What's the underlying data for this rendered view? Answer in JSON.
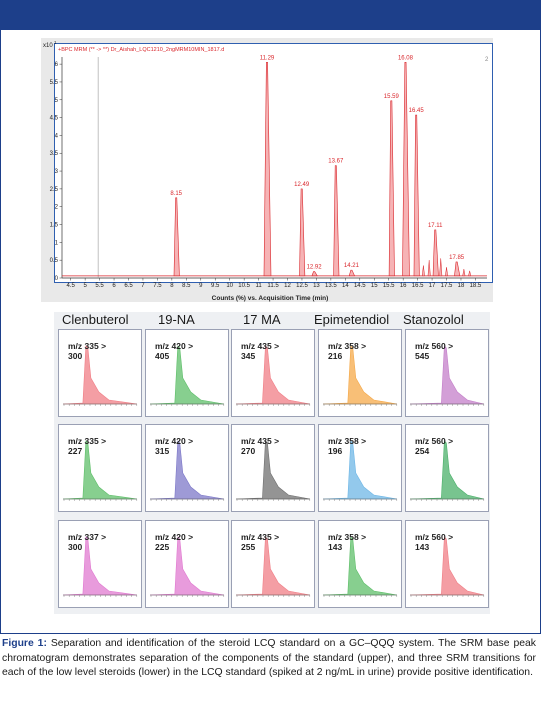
{
  "chart_data": [
    {
      "type": "line",
      "title": "+BPC MRM (** -> **) Dr_Aishah_LQC1210_2ngMRM10MIN_1817.d",
      "xlabel": "Counts (%) vs. Acquisition Time (min)",
      "y_exponent_label": "x10",
      "y_exponent_power": "1",
      "xlim": [
        4.2,
        18.9
      ],
      "ylim": [
        0,
        6.2
      ],
      "x_ticks": [
        "4.5",
        "5",
        "5.5",
        "6",
        "6.5",
        "7",
        "7.5",
        "8",
        "8.5",
        "9",
        "9.5",
        "10",
        "10.5",
        "11",
        "11.5",
        "12",
        "12.5",
        "13",
        "13.5",
        "14",
        "14.5",
        "15",
        "15.5",
        "16",
        "16.5",
        "17",
        "17.5",
        "18",
        "18.5"
      ],
      "y_ticks": [
        "0",
        "0.5",
        "1",
        "1.5",
        "2",
        "2.5",
        "3",
        "3.5",
        "4",
        "4.5",
        "5",
        "5.5",
        "6"
      ],
      "corner_marker": "2",
      "peaks": [
        {
          "x": 8.15,
          "y": 2.25,
          "label": "8.15"
        },
        {
          "x": 11.29,
          "y": 6.05,
          "label": "11.29"
        },
        {
          "x": 12.49,
          "y": 2.5,
          "label": "12.49"
        },
        {
          "x": 12.92,
          "y": 0.18,
          "label": "12.92"
        },
        {
          "x": 13.67,
          "y": 3.15,
          "label": "13.67"
        },
        {
          "x": 14.21,
          "y": 0.22,
          "label": "14.21"
        },
        {
          "x": 15.59,
          "y": 4.97,
          "label": "15.59"
        },
        {
          "x": 16.08,
          "y": 6.05,
          "label": "16.08"
        },
        {
          "x": 16.45,
          "y": 4.57,
          "label": "16.45"
        },
        {
          "x": 17.11,
          "y": 1.35,
          "label": "17.11"
        },
        {
          "x": 17.85,
          "y": 0.45,
          "label": "17.85"
        }
      ],
      "line_color": "#d9262b"
    },
    {
      "type": "grid_of_line_charts",
      "columns": [
        "Clenbuterol",
        "19-NA",
        "17 MA",
        "Epimetendiol",
        "Stanozolol"
      ],
      "rows": [
        [
          {
            "label": "m/z 335 >",
            "product": "300",
            "color": "#f07e86"
          },
          {
            "label": "m/z 420 >",
            "product": "405",
            "color": "#5fbf6a"
          },
          {
            "label": "m/z 435 >",
            "product": "345",
            "color": "#f07e86"
          },
          {
            "label": "m/z 358 >",
            "product": "216",
            "color": "#f5a94a"
          },
          {
            "label": "m/z 560 >",
            "product": "545",
            "color": "#c47fc9"
          }
        ],
        [
          {
            "label": "m/z 335 >",
            "product": "227",
            "color": "#5fbf6a"
          },
          {
            "label": "m/z 420 >",
            "product": "315",
            "color": "#7d78c8"
          },
          {
            "label": "m/z 435 >",
            "product": "270",
            "color": "#707070"
          },
          {
            "label": "m/z 358 >",
            "product": "196",
            "color": "#6fb7e6"
          },
          {
            "label": "m/z 560 >",
            "product": "254",
            "color": "#4bb06a"
          }
        ],
        [
          {
            "label": "m/z 337 >",
            "product": "300",
            "color": "#e07ad0"
          },
          {
            "label": "m/z 420 >",
            "product": "225",
            "color": "#e07ad0"
          },
          {
            "label": "m/z 435 >",
            "product": "255",
            "color": "#f07e86"
          },
          {
            "label": "m/z 358 >",
            "product": "143",
            "color": "#5fbf6a"
          },
          {
            "label": "m/z 560 >",
            "product": "143",
            "color": "#f07e86"
          }
        ]
      ]
    }
  ],
  "caption": {
    "prefix": "Figure 1:",
    "text": " Separation and identification of the steroid LCQ standard on a GC–QQQ system. The SRM base peak chromatogram demonstrates separation of the components of the standard (upper), and three SRM transitions for each of the low level steroids (lower) in the LCQ standard (spiked at 2 ng/mL in urine) provide positive identification."
  },
  "colors": {
    "brand_blue": "#1d3f8a",
    "peak_red": "#d9262b"
  }
}
